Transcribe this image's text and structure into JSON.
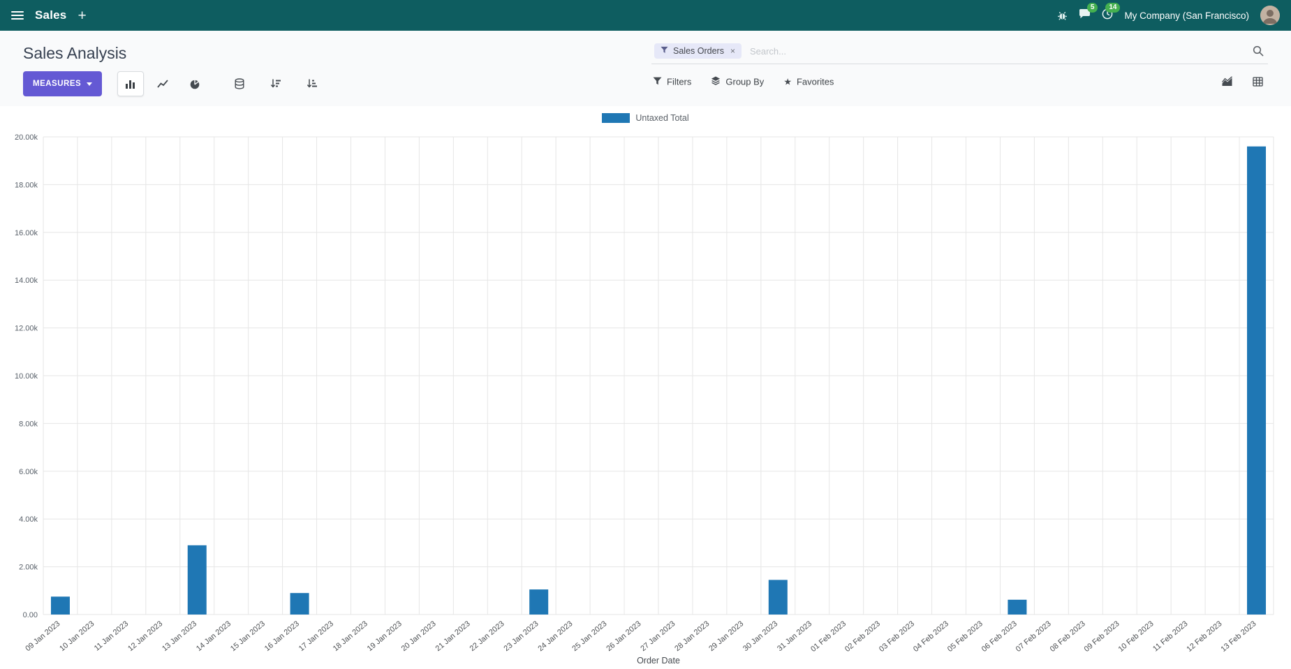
{
  "navbar": {
    "app_name": "Sales",
    "company": "My Company (San Francisco)",
    "badges": {
      "messages": "5",
      "activities": "14"
    }
  },
  "control_panel": {
    "breadcrumb": "Sales Analysis",
    "search": {
      "facet": "Sales Orders",
      "facet_remove": "×",
      "placeholder": "Search..."
    },
    "measures_label": "MEASURES",
    "buttons": {
      "filters": "Filters",
      "group_by": "Group By",
      "favorites": "Favorites"
    }
  },
  "icons": {
    "menu": "hamburger",
    "plus": "+",
    "star": "★",
    "bug": "bug-icon",
    "chat": "chat-icon",
    "clock": "clock-icon",
    "bar": "bar-chart-icon",
    "line": "line-chart-icon",
    "pie": "pie-chart-icon",
    "stacked": "database-icon",
    "sort_desc": "sort-desc-icon",
    "sort_asc": "sort-asc-icon",
    "filter": "funnel-icon",
    "group": "layers-icon",
    "search": "magnifier-icon",
    "graph_view": "area-chart-icon",
    "pivot_view": "pivot-grid-icon"
  },
  "colors": {
    "navbar_bg": "#0e5d60",
    "primary_button": "#6459d4",
    "badge_green": "#44b050",
    "bar_blue": "#1f77b4",
    "panel_bg": "#f9fafb",
    "grid": "#e6e6e6"
  },
  "chart_data": {
    "type": "bar",
    "title": "",
    "xlabel": "Order Date",
    "ylabel": "",
    "ylim": [
      0,
      20000
    ],
    "ytick_step": 2000,
    "yticks": [
      "0.00",
      "2.00k",
      "4.00k",
      "6.00k",
      "8.00k",
      "10.00k",
      "12.00k",
      "14.00k",
      "16.00k",
      "18.00k",
      "20.00k"
    ],
    "legend": [
      {
        "label": "Untaxed Total",
        "color": "#1f77b4"
      }
    ],
    "legend_position": "top",
    "grid": true,
    "grid_color": "#e6e6e6",
    "bar_color": "#1f77b4",
    "categories": [
      "09 Jan 2023",
      "10 Jan 2023",
      "11 Jan 2023",
      "12 Jan 2023",
      "13 Jan 2023",
      "14 Jan 2023",
      "15 Jan 2023",
      "16 Jan 2023",
      "17 Jan 2023",
      "18 Jan 2023",
      "19 Jan 2023",
      "20 Jan 2023",
      "21 Jan 2023",
      "22 Jan 2023",
      "23 Jan 2023",
      "24 Jan 2023",
      "25 Jan 2023",
      "26 Jan 2023",
      "27 Jan 2023",
      "28 Jan 2023",
      "29 Jan 2023",
      "30 Jan 2023",
      "31 Jan 2023",
      "01 Feb 2023",
      "02 Feb 2023",
      "03 Feb 2023",
      "04 Feb 2023",
      "05 Feb 2023",
      "06 Feb 2023",
      "07 Feb 2023",
      "08 Feb 2023",
      "09 Feb 2023",
      "10 Feb 2023",
      "11 Feb 2023",
      "12 Feb 2023",
      "13 Feb 2023"
    ],
    "values": [
      750,
      0,
      0,
      0,
      2900,
      0,
      0,
      900,
      0,
      0,
      0,
      0,
      0,
      0,
      1050,
      0,
      0,
      0,
      0,
      0,
      0,
      1450,
      0,
      0,
      0,
      0,
      0,
      0,
      620,
      0,
      0,
      0,
      0,
      0,
      0,
      19600
    ]
  }
}
